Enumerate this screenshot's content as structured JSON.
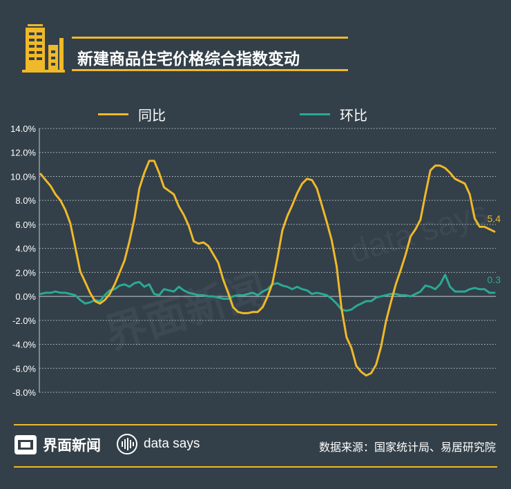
{
  "header": {
    "title": "新建商品住宅价格综合指数变动"
  },
  "legend": [
    {
      "label": "同比",
      "color": "#f0b929"
    },
    {
      "label": "环比",
      "color": "#2aaa94"
    }
  ],
  "watermark": {
    "cn": "界面新闻",
    "en": "data says"
  },
  "footer": {
    "brand": "界面新闻",
    "datasays": "data says",
    "source": "数据来源：国家统计局、易居研究院"
  },
  "colors": {
    "background": "#334049",
    "accent": "#f0b929",
    "teal": "#2aaa94",
    "grid": "#c8cdd1"
  },
  "chart_data": {
    "type": "line",
    "title": "新建商品住宅价格综合指数变动",
    "ylim": [
      -8,
      14
    ],
    "yticks": [
      14,
      12,
      10,
      8,
      6,
      4,
      2,
      0,
      -2,
      -4,
      -6,
      -8
    ],
    "ytick_labels": [
      "14.0%",
      "12.0%",
      "10.0%",
      "8.0%",
      "6.0%",
      "4.0%",
      "2.0%",
      "0.0%",
      "-2.0%",
      "-4.0%",
      "-6.0%",
      "-8.0%"
    ],
    "grid": true,
    "legend_position": "top",
    "series": [
      {
        "name": "同比",
        "color": "#f0b929",
        "values": [
          10.2,
          9.7,
          9.2,
          8.5,
          8.0,
          7.2,
          6.1,
          4.1,
          2.1,
          1.2,
          0.3,
          -0.4,
          -0.6,
          -0.3,
          0.2,
          1.0,
          2.0,
          3.0,
          4.6,
          6.5,
          9.0,
          10.3,
          11.3,
          11.3,
          10.3,
          9.1,
          8.8,
          8.5,
          7.5,
          6.8,
          5.9,
          4.6,
          4.4,
          4.5,
          4.2,
          3.5,
          2.8,
          1.4,
          0.3,
          -0.9,
          -1.3,
          -1.4,
          -1.4,
          -1.3,
          -1.3,
          -0.9,
          0.0,
          1.1,
          3.2,
          5.5,
          6.7,
          7.6,
          8.6,
          9.4,
          9.8,
          9.7,
          9.0,
          7.6,
          6.2,
          4.7,
          2.5,
          -1.0,
          -3.4,
          -4.3,
          -5.8,
          -6.3,
          -6.6,
          -6.4,
          -5.7,
          -4.2,
          -2.1,
          -0.5,
          1.0,
          2.2,
          3.5,
          5.0,
          5.6,
          6.4,
          8.5,
          10.5,
          10.9,
          10.9,
          10.7,
          10.3,
          9.8,
          9.6,
          9.4,
          8.5,
          6.5,
          5.8,
          5.8,
          5.6,
          5.4
        ]
      },
      {
        "name": "环比",
        "color": "#2aaa94",
        "values": [
          0.2,
          0.3,
          0.3,
          0.4,
          0.3,
          0.3,
          0.2,
          0.1,
          -0.3,
          -0.6,
          -0.5,
          -0.3,
          -0.4,
          0.1,
          0.5,
          0.6,
          0.9,
          1.0,
          0.8,
          1.1,
          1.2,
          0.8,
          1.0,
          0.2,
          0.1,
          0.6,
          0.5,
          0.4,
          0.8,
          0.5,
          0.3,
          0.2,
          0.1,
          0.1,
          0.0,
          0.0,
          -0.1,
          -0.2,
          -0.2,
          0.0,
          0.1,
          0.1,
          0.2,
          0.3,
          0.1,
          0.4,
          0.6,
          1.0,
          1.1,
          0.9,
          0.8,
          0.6,
          0.8,
          0.6,
          0.5,
          0.2,
          0.3,
          0.2,
          0.1,
          -0.2,
          -0.6,
          -1.1,
          -1.2,
          -1.1,
          -0.8,
          -0.6,
          -0.4,
          -0.4,
          -0.1,
          0.0,
          0.1,
          0.2,
          0.2,
          0.1,
          0.1,
          0.0,
          0.2,
          0.4,
          0.9,
          0.8,
          0.6,
          1.0,
          1.8,
          0.8,
          0.4,
          0.4,
          0.4,
          0.6,
          0.7,
          0.6,
          0.6,
          0.3,
          0.3
        ]
      }
    ],
    "annotations": [
      {
        "series": "同比",
        "text": "5.4",
        "value": 5.4
      },
      {
        "series": "环比",
        "text": "0.3",
        "value": 0.3
      }
    ]
  }
}
